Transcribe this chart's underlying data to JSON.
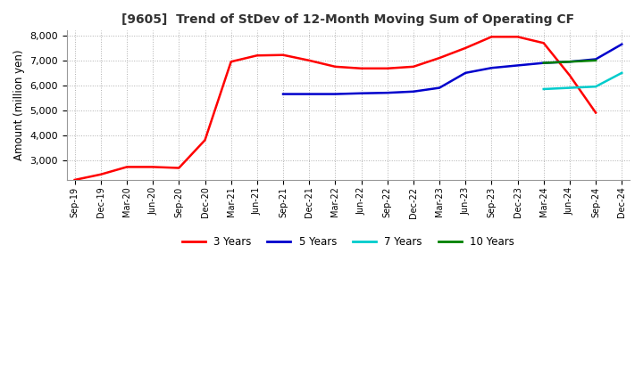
{
  "title": "[9605]  Trend of StDev of 12-Month Moving Sum of Operating CF",
  "ylabel": "Amount (million yen)",
  "ylim": [
    2200,
    8200
  ],
  "yticks": [
    3000,
    4000,
    5000,
    6000,
    7000,
    8000
  ],
  "background_color": "#ffffff",
  "grid_color": "#b0b0b0",
  "x_labels": [
    "Sep-19",
    "Dec-19",
    "Mar-20",
    "Jun-20",
    "Sep-20",
    "Dec-20",
    "Mar-21",
    "Jun-21",
    "Sep-21",
    "Dec-21",
    "Mar-22",
    "Jun-22",
    "Sep-22",
    "Dec-22",
    "Mar-23",
    "Jun-23",
    "Sep-23",
    "Dec-23",
    "Mar-24",
    "Jun-24",
    "Sep-24",
    "Dec-24"
  ],
  "series": {
    "3 Years": {
      "color": "#ff0000",
      "data": [
        2200,
        2420,
        2720,
        2720,
        2680,
        3800,
        6950,
        7200,
        7220,
        7000,
        6750,
        6680,
        6680,
        6750,
        7100,
        7500,
        7950,
        7950,
        7700,
        6400,
        4900,
        null
      ]
    },
    "5 Years": {
      "color": "#0000cc",
      "data": [
        null,
        null,
        null,
        null,
        null,
        null,
        null,
        null,
        5650,
        5650,
        5650,
        5680,
        5700,
        5750,
        5900,
        6500,
        6700,
        6800,
        6900,
        6950,
        7050,
        7650
      ]
    },
    "7 Years": {
      "color": "#00cccc",
      "data": [
        null,
        null,
        null,
        null,
        null,
        null,
        null,
        null,
        null,
        null,
        null,
        null,
        null,
        null,
        null,
        null,
        null,
        null,
        5850,
        5900,
        5950,
        6500
      ]
    },
    "10 Years": {
      "color": "#008000",
      "data": [
        null,
        null,
        null,
        null,
        null,
        null,
        null,
        null,
        null,
        null,
        null,
        null,
        null,
        null,
        null,
        null,
        null,
        null,
        6900,
        6950,
        7000,
        null
      ]
    }
  },
  "legend_labels": [
    "3 Years",
    "5 Years",
    "7 Years",
    "10 Years"
  ],
  "legend_colors": [
    "#ff0000",
    "#0000cc",
    "#00cccc",
    "#008000"
  ]
}
